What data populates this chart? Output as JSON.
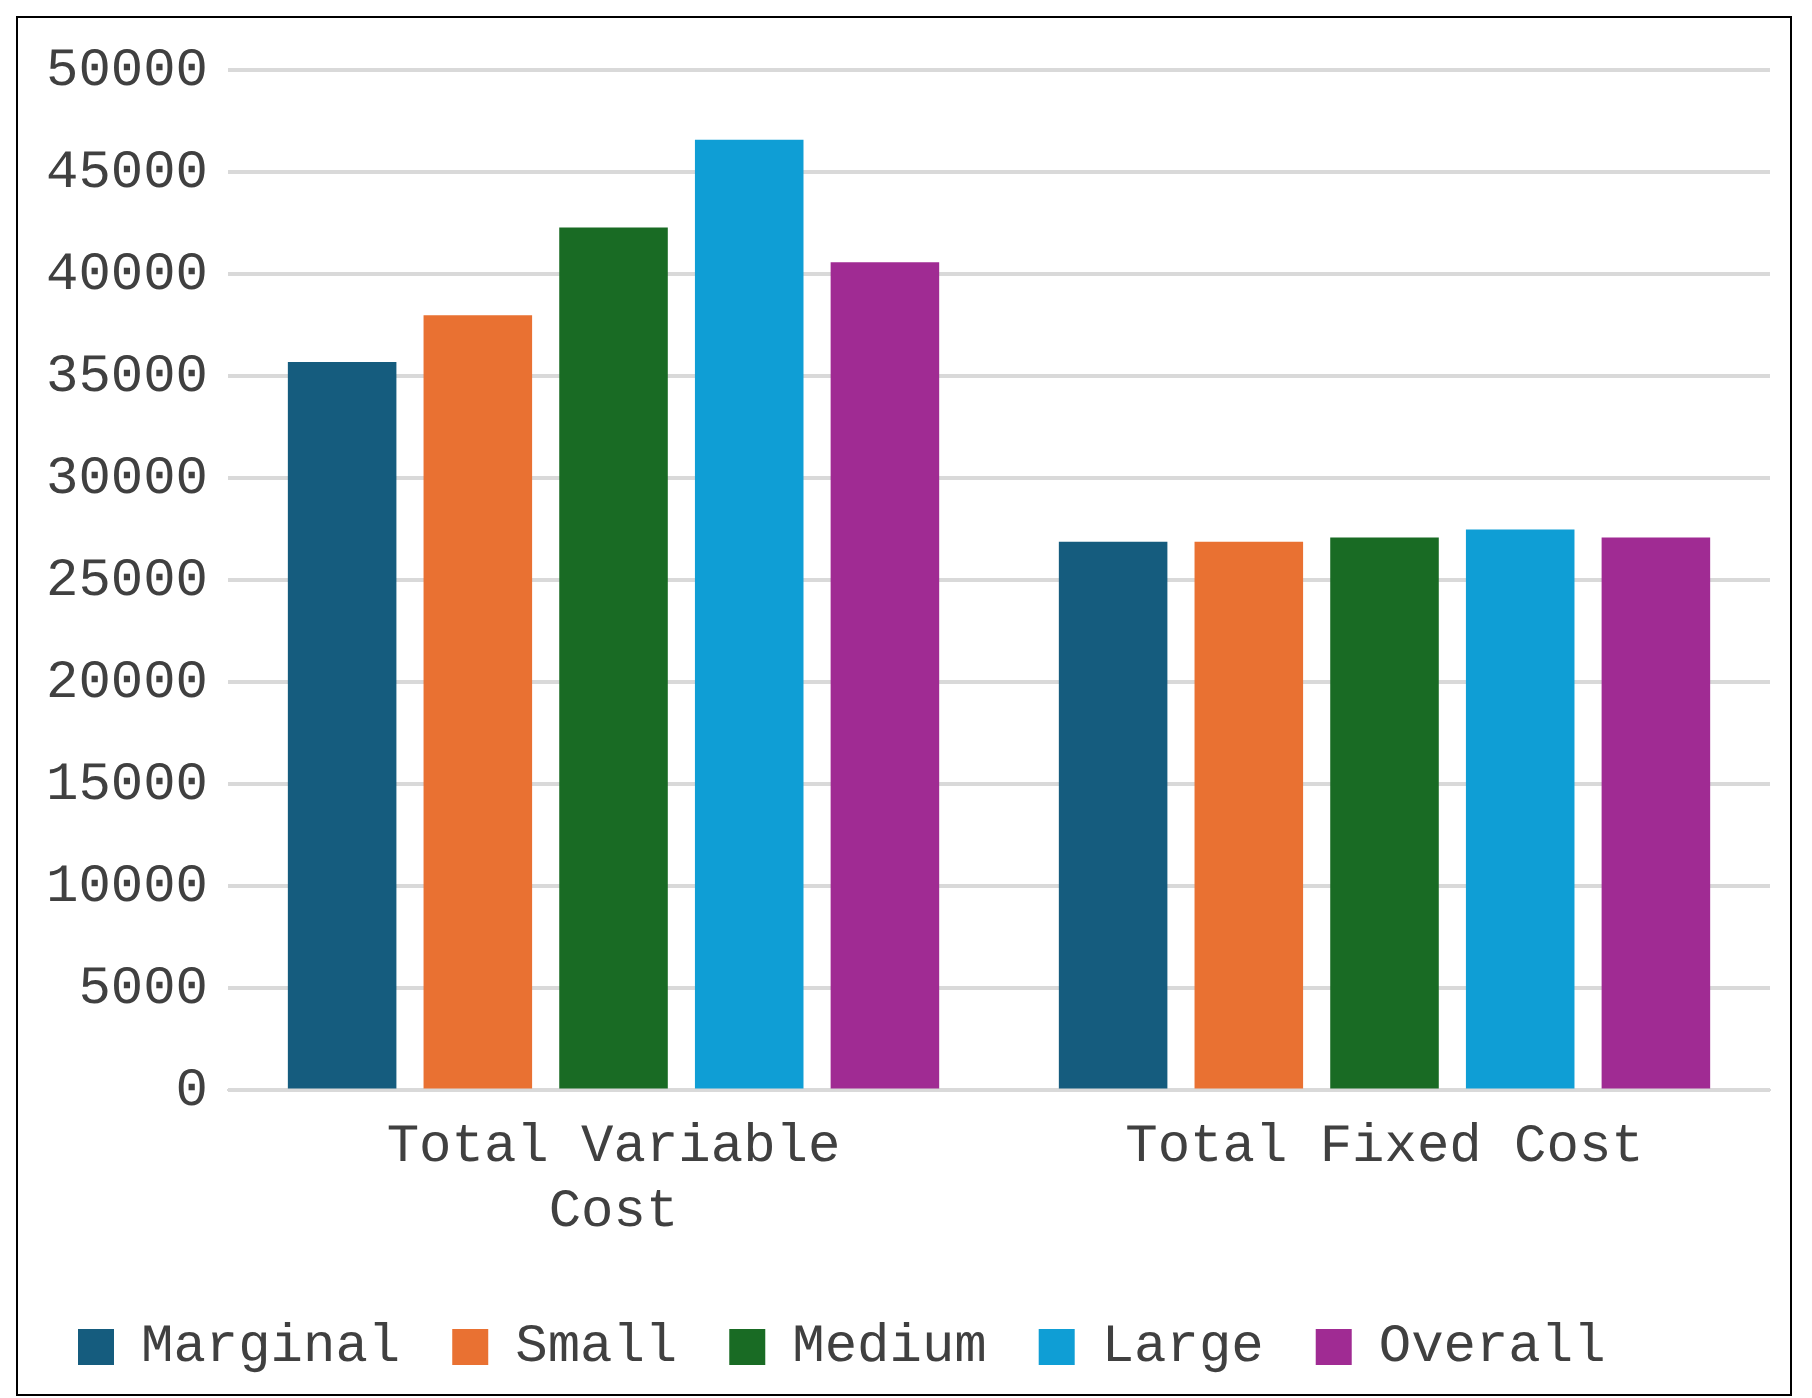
{
  "chart_data": {
    "type": "bar",
    "categories": [
      "Total Variable Cost",
      "Total Fixed Cost"
    ],
    "series": [
      {
        "name": "Marginal",
        "color": "#155c7e",
        "values": [
          35700,
          26900
        ]
      },
      {
        "name": "Small",
        "color": "#e97132",
        "values": [
          38000,
          26900
        ]
      },
      {
        "name": "Medium",
        "color": "#196b24",
        "values": [
          42300,
          27100
        ]
      },
      {
        "name": "Large",
        "color": "#0f9ed5",
        "values": [
          46600,
          27500
        ]
      },
      {
        "name": "Overall",
        "color": "#a02b93",
        "values": [
          40600,
          27100
        ]
      }
    ],
    "ylim": [
      0,
      50000
    ],
    "yticks": [
      0,
      5000,
      10000,
      15000,
      20000,
      25000,
      30000,
      35000,
      40000,
      45000,
      50000
    ],
    "grid": "y",
    "legend": "bottom"
  }
}
